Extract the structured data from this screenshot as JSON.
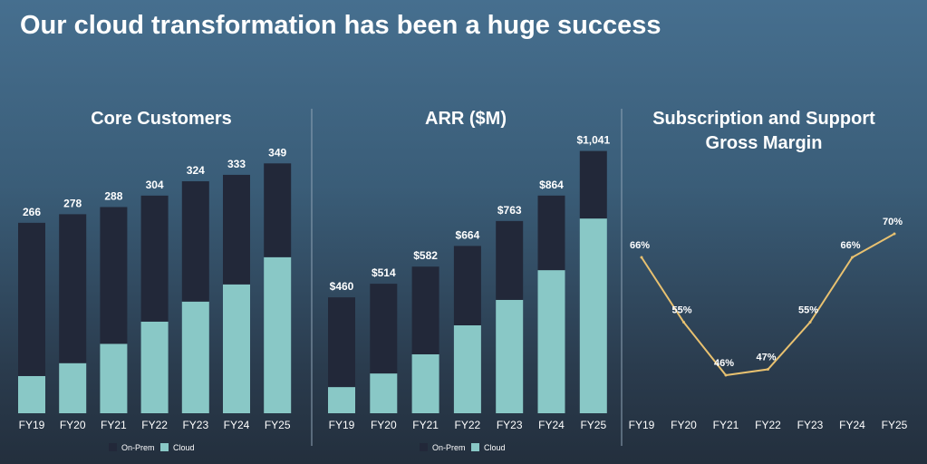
{
  "slide": {
    "title": "Our cloud transformation has been a huge success"
  },
  "colors": {
    "on_prem": "#222839",
    "cloud": "#89c8c6",
    "line": "#e8c170",
    "text": "#ffffff"
  },
  "chart_data": [
    {
      "type": "bar",
      "stacked": true,
      "title": "Core Customers",
      "categories": [
        "FY19",
        "FY20",
        "FY21",
        "FY22",
        "FY23",
        "FY24",
        "FY25"
      ],
      "totals_labels": [
        "266",
        "278",
        "288",
        "304",
        "324",
        "333",
        "349"
      ],
      "series": [
        {
          "name": "On-Prem",
          "values": [
            214,
            208,
            191,
            176,
            168,
            153,
            131
          ]
        },
        {
          "name": "Cloud",
          "values": [
            52,
            70,
            97,
            128,
            156,
            180,
            218
          ]
        }
      ],
      "legend": [
        "On-Prem",
        "Cloud"
      ],
      "legend_position": "bottom",
      "grid": false
    },
    {
      "type": "bar",
      "stacked": true,
      "title": "ARR ($M)",
      "categories": [
        "FY19",
        "FY20",
        "FY21",
        "FY22",
        "FY23",
        "FY24",
        "FY25"
      ],
      "totals_labels": [
        "$460",
        "$514",
        "$582",
        "$664",
        "$763",
        "$864",
        "$1,041"
      ],
      "series": [
        {
          "name": "On-Prem",
          "values": [
            356,
            356,
            348,
            315,
            313,
            296,
            268
          ]
        },
        {
          "name": "Cloud",
          "values": [
            104,
            158,
            234,
            349,
            450,
            568,
            773
          ]
        }
      ],
      "legend": [
        "On-Prem",
        "Cloud"
      ],
      "legend_position": "bottom",
      "grid": false
    },
    {
      "type": "line",
      "title": "Subscription and Support Gross Margin",
      "title_lines": [
        "Subscription and Support",
        "Gross Margin"
      ],
      "categories": [
        "FY19",
        "FY20",
        "FY21",
        "FY22",
        "FY23",
        "FY24",
        "FY25"
      ],
      "values": [
        66,
        55,
        46,
        47,
        55,
        66,
        70
      ],
      "data_labels": [
        "66%",
        "55%",
        "46%",
        "47%",
        "55%",
        "66%",
        "70%"
      ],
      "grid": false
    }
  ]
}
